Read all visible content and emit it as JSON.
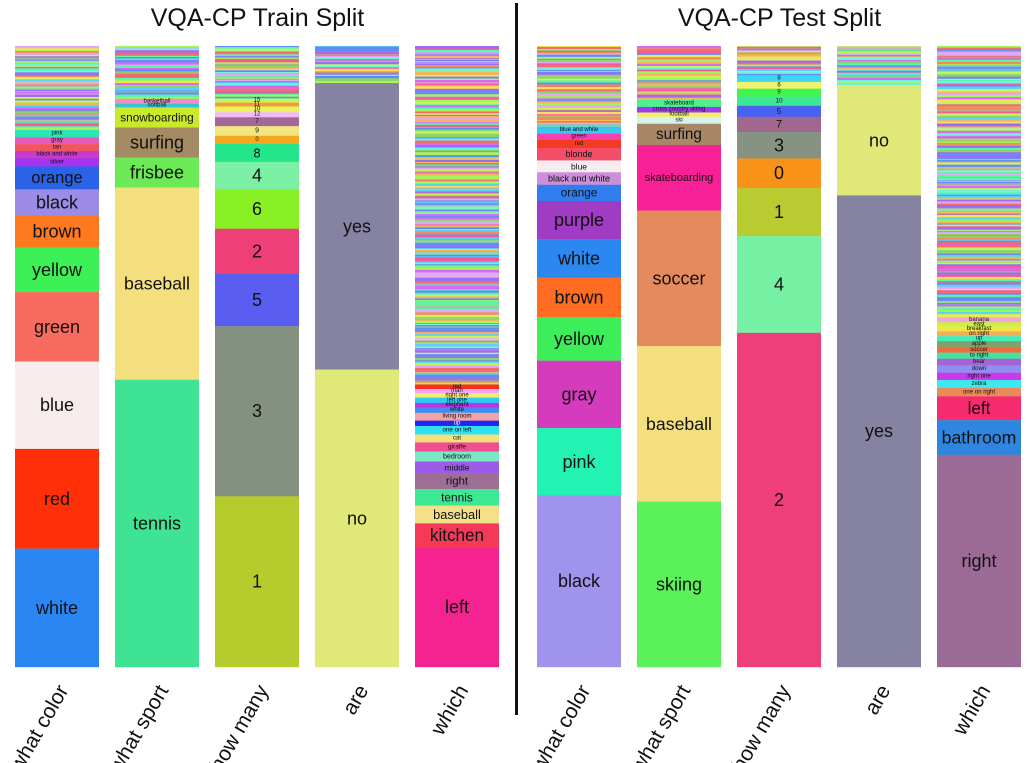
{
  "panels": [
    {
      "title": "VQA-CP Train Split",
      "columns": [
        {
          "question": "what color",
          "noise": 0.135,
          "segments": [
            {
              "answer": "pink",
              "share": 0.012,
              "color": "#2ee6b5"
            },
            {
              "answer": "gray",
              "share": 0.011,
              "color": "#e35bbd"
            },
            {
              "answer": "tan",
              "share": 0.011,
              "color": "#f2555d"
            },
            {
              "answer": "black and white",
              "share": 0.012,
              "color": "#c93cc9"
            },
            {
              "answer": "silver",
              "share": 0.013,
              "color": "#a633f0"
            },
            {
              "answer": "orange",
              "share": 0.037,
              "color": "#2a63e8"
            },
            {
              "answer": "black",
              "share": 0.042,
              "color": "#9c8ce8"
            },
            {
              "answer": "brown",
              "share": 0.052,
              "color": "#ff7a1f"
            },
            {
              "answer": "yellow",
              "share": 0.072,
              "color": "#3cf055"
            },
            {
              "answer": "green",
              "share": 0.112,
              "color": "#f86b5f"
            },
            {
              "answer": "blue",
              "share": 0.141,
              "color": "#f6ecec"
            },
            {
              "answer": "red",
              "share": 0.161,
              "color": "#ff3008"
            },
            {
              "answer": "white",
              "share": 0.191,
              "color": "#2a86f2"
            }
          ]
        },
        {
          "question": "what sport",
          "noise": 0.085,
          "segments": [
            {
              "answer": "basketball",
              "share": 0.008,
              "color": "#f18dc9"
            },
            {
              "answer": "softball",
              "share": 0.006,
              "color": "#34c6d4"
            },
            {
              "answer": "snowboarding",
              "share": 0.032,
              "color": "#c9ea2a"
            },
            {
              "answer": "surfing",
              "share": 0.048,
              "color": "#a58b63"
            },
            {
              "answer": "frisbee",
              "share": 0.048,
              "color": "#6bea55"
            },
            {
              "answer": "baseball",
              "share": 0.308,
              "color": "#f3df7e"
            },
            {
              "answer": "tennis",
              "share": 0.46,
              "color": "#3ee394"
            }
          ]
        },
        {
          "question": "how many",
          "noise": 0.085,
          "segments": [
            {
              "answer": "15",
              "share": 0.006,
              "color": "#c8f55a"
            },
            {
              "answer": "11",
              "share": 0.006,
              "color": "#f59a3a"
            },
            {
              "answer": "10",
              "share": 0.009,
              "color": "#eaf25a"
            },
            {
              "answer": "12",
              "share": 0.008,
              "color": "#f0bdf2"
            },
            {
              "answer": "7",
              "share": 0.014,
              "color": "#a2689a"
            },
            {
              "answer": "9",
              "share": 0.015,
              "color": "#f1e77f"
            },
            {
              "answer": "0",
              "share": 0.013,
              "color": "#f5a71e"
            },
            {
              "answer": "8",
              "share": 0.028,
              "color": "#23e68a"
            },
            {
              "answer": "4",
              "share": 0.043,
              "color": "#7cf0a4"
            },
            {
              "answer": "6",
              "share": 0.062,
              "color": "#88f025"
            },
            {
              "answer": "2",
              "share": 0.071,
              "color": "#ee3f78"
            },
            {
              "answer": "5",
              "share": 0.082,
              "color": "#595ef0"
            },
            {
              "answer": "3",
              "share": 0.267,
              "color": "#849080"
            },
            {
              "answer": "1",
              "share": 0.268,
              "color": "#b5cc2c"
            }
          ]
        },
        {
          "question": "are",
          "noise": 0.06,
          "segments": [
            {
              "answer": "yes",
              "share": 0.46,
              "color": "#8582a2"
            },
            {
              "answer": "no",
              "share": 0.478,
              "color": "#e0e878"
            }
          ]
        },
        {
          "question": "which",
          "noise": 0.545,
          "segments": [
            {
              "answer": "red",
              "share": 0.007,
              "color": "#f92d22"
            },
            {
              "answer": "man",
              "share": 0.006,
              "color": "#f1a7f2"
            },
            {
              "answer": "right one",
              "share": 0.007,
              "color": "#f6eb6a"
            },
            {
              "answer": "left one",
              "share": 0.008,
              "color": "#2acdf2"
            },
            {
              "answer": "elephant",
              "share": 0.007,
              "color": "#bb34e6"
            },
            {
              "answer": "white",
              "share": 0.008,
              "color": "#3d8df2"
            },
            {
              "answer": "living room",
              "share": 0.012,
              "color": "#f0a3a6"
            },
            {
              "answer": "up",
              "share": 0.008,
              "color": "#2424f0"
            },
            {
              "answer": "one on left",
              "share": 0.013,
              "color": "#2ee0f0"
            },
            {
              "answer": "cat",
              "share": 0.012,
              "color": "#f5e17a"
            },
            {
              "answer": "giraffe",
              "share": 0.014,
              "color": "#f04f91"
            },
            {
              "answer": "bedroom",
              "share": 0.015,
              "color": "#7ae8c3"
            },
            {
              "answer": "middle",
              "share": 0.018,
              "color": "#9d5be6"
            },
            {
              "answer": "right",
              "share": 0.024,
              "color": "#9e6f94"
            },
            {
              "answer": "tennis",
              "share": 0.025,
              "color": "#3de894"
            },
            {
              "answer": "baseball",
              "share": 0.027,
              "color": "#f5e08a"
            },
            {
              "answer": "kitchen",
              "share": 0.036,
              "color": "#f43a58"
            },
            {
              "answer": "left",
              "share": 0.182,
              "color": "#f52390"
            }
          ]
        }
      ]
    },
    {
      "title": "VQA-CP Test Split",
      "columns": [
        {
          "question": "what color",
          "noise": 0.13,
          "segments": [
            {
              "answer": "blue and white",
              "share": 0.011,
              "color": "#3cc5f2"
            },
            {
              "answer": "green",
              "share": 0.01,
              "color": "#f542ae"
            },
            {
              "answer": "red",
              "share": 0.013,
              "color": "#f23b22"
            },
            {
              "answer": "blonde",
              "share": 0.02,
              "color": "#f44d67"
            },
            {
              "answer": "blue",
              "share": 0.019,
              "color": "#f7edf0"
            },
            {
              "answer": "black and white",
              "share": 0.02,
              "color": "#cc8fd9"
            },
            {
              "answer": "orange",
              "share": 0.026,
              "color": "#2e7ef0"
            },
            {
              "answer": "purple",
              "share": 0.061,
              "color": "#a03bc4"
            },
            {
              "answer": "white",
              "share": 0.062,
              "color": "#2b88f0"
            },
            {
              "answer": "brown",
              "share": 0.063,
              "color": "#ff6c22"
            },
            {
              "answer": "yellow",
              "share": 0.07,
              "color": "#3ded5a"
            },
            {
              "answer": "gray",
              "share": 0.108,
              "color": "#d43bbd"
            },
            {
              "answer": "pink",
              "share": 0.108,
              "color": "#22f2b2"
            },
            {
              "answer": "black",
              "share": 0.275,
              "color": "#9f93ee"
            }
          ]
        },
        {
          "question": "what sport",
          "noise": 0.087,
          "segments": [
            {
              "answer": "skateboard",
              "share": 0.011,
              "color": "#4cf290"
            },
            {
              "answer": "cross country skiing",
              "share": 0.009,
              "color": "#a13bf0"
            },
            {
              "answer": "football",
              "share": 0.007,
              "color": "#eef06a"
            },
            {
              "answer": "ski",
              "share": 0.011,
              "color": "#d7f1ed"
            },
            {
              "answer": "surfing",
              "share": 0.034,
              "color": "#a88766"
            },
            {
              "answer": "skateboarding",
              "share": 0.105,
              "color": "#f72096"
            },
            {
              "answer": "soccer",
              "share": 0.217,
              "color": "#e58a5c"
            },
            {
              "answer": "baseball",
              "share": 0.249,
              "color": "#f3df7e"
            },
            {
              "answer": "skiing",
              "share": 0.265,
              "color": "#5af15a"
            }
          ]
        },
        {
          "question": "how many",
          "noise": 0.047,
          "segments": [
            {
              "answer": "8",
              "share": 0.011,
              "color": "#3bd7f2"
            },
            {
              "answer": "6",
              "share": 0.011,
              "color": "#eff26a"
            },
            {
              "answer": "9",
              "share": 0.013,
              "color": "#42f54e"
            },
            {
              "answer": "10",
              "share": 0.015,
              "color": "#3de895"
            },
            {
              "answer": "5",
              "share": 0.018,
              "color": "#4a62f2"
            },
            {
              "answer": "7",
              "share": 0.025,
              "color": "#a0688e"
            },
            {
              "answer": "3",
              "share": 0.043,
              "color": "#879382"
            },
            {
              "answer": "0",
              "share": 0.048,
              "color": "#f89218"
            },
            {
              "answer": "1",
              "share": 0.079,
              "color": "#b8cb30"
            },
            {
              "answer": "4",
              "share": 0.158,
              "color": "#76f0a2"
            },
            {
              "answer": "2",
              "share": 0.546,
              "color": "#ef3f7a"
            }
          ]
        },
        {
          "question": "are",
          "noise": 0.063,
          "segments": [
            {
              "answer": "no",
              "share": 0.177,
              "color": "#e0e878"
            },
            {
              "answer": "yes",
              "share": 0.757,
              "color": "#8582a2"
            }
          ]
        },
        {
          "question": "which",
          "noise": 0.438,
          "segments": [
            {
              "answer": "banana",
              "share": 0.007,
              "color": "#f2a7d9"
            },
            {
              "answer": "east",
              "share": 0.007,
              "color": "#c8f244"
            },
            {
              "answer": "breakfast",
              "share": 0.008,
              "color": "#f2e54a"
            },
            {
              "answer": "on right",
              "share": 0.008,
              "color": "#f2b05a"
            },
            {
              "answer": "up",
              "share": 0.008,
              "color": "#3af0c0"
            },
            {
              "answer": "apple",
              "share": 0.01,
              "color": "#84a06a"
            },
            {
              "answer": "soccer",
              "share": 0.009,
              "color": "#f26a3a"
            },
            {
              "answer": "to right",
              "share": 0.01,
              "color": "#42e2a0"
            },
            {
              "answer": "bear",
              "share": 0.011,
              "color": "#a862d8"
            },
            {
              "answer": "down",
              "share": 0.012,
              "color": "#8f8ff2"
            },
            {
              "answer": "right one",
              "share": 0.012,
              "color": "#c83aea"
            },
            {
              "answer": "zebra",
              "share": 0.013,
              "color": "#3de8f0"
            },
            {
              "answer": "one on right",
              "share": 0.014,
              "color": "#e88a5a"
            },
            {
              "answer": "left",
              "share": 0.039,
              "color": "#f52a6f"
            },
            {
              "answer": "bathroom",
              "share": 0.057,
              "color": "#2e86e0"
            },
            {
              "answer": "right",
              "share": 0.349,
              "color": "#9c6b95"
            }
          ]
        }
      ]
    }
  ]
}
